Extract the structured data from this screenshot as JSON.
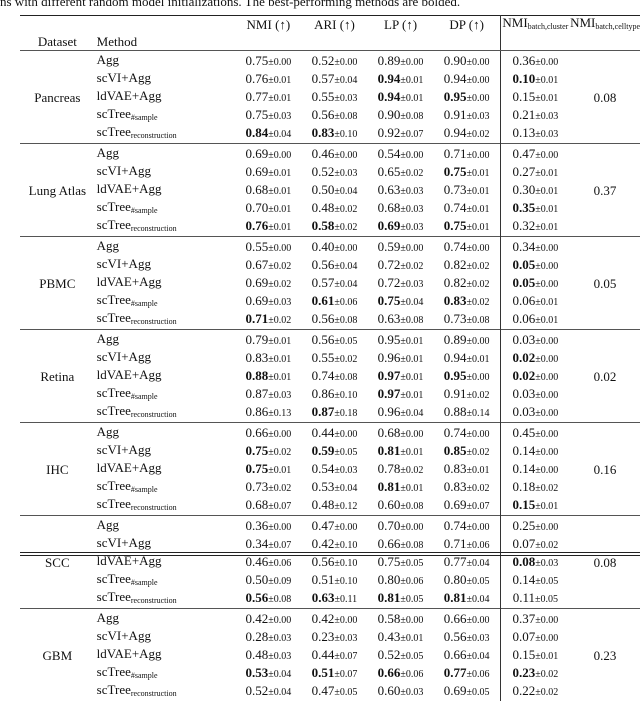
{
  "caption": "ns with different random model initializations. The best-performing methods are bolded.",
  "headers": {
    "dataset": "Dataset",
    "method": "Method",
    "nmi": "NMI (↑)",
    "ari": "ARI (↑)",
    "lp": "LP (↑)",
    "dp": "DP (↑)",
    "nmi_bc_base": "NMI",
    "nmi_bc_sub": "batch,cluster",
    "nmi_bct_base": "NMI",
    "nmi_bct_sub": "batch,celltype"
  },
  "methods": [
    {
      "base": "Agg",
      "sub": ""
    },
    {
      "base": "scVI+Agg",
      "sub": ""
    },
    {
      "base": "ldVAE+Agg",
      "sub": ""
    },
    {
      "base": "scTree",
      "sub": "#sample"
    },
    {
      "base": "scTree",
      "sub": "reconstruction"
    }
  ],
  "datasets": [
    {
      "name": "Pancreas",
      "celltype": "0.08",
      "rows": [
        [
          [
            "0.75",
            "0.00",
            0
          ],
          [
            "0.52",
            "0.00",
            0
          ],
          [
            "0.89",
            "0.00",
            0
          ],
          [
            "0.90",
            "0.00",
            0
          ],
          [
            "0.36",
            "0.00",
            0
          ]
        ],
        [
          [
            "0.76",
            "0.01",
            0
          ],
          [
            "0.57",
            "0.04",
            0
          ],
          [
            "0.94",
            "0.01",
            1
          ],
          [
            "0.94",
            "0.00",
            0
          ],
          [
            "0.10",
            "0.01",
            1
          ]
        ],
        [
          [
            "0.77",
            "0.01",
            0
          ],
          [
            "0.55",
            "0.03",
            0
          ],
          [
            "0.94",
            "0.01",
            1
          ],
          [
            "0.95",
            "0.00",
            1
          ],
          [
            "0.15",
            "0.01",
            0
          ]
        ],
        [
          [
            "0.75",
            "0.03",
            0
          ],
          [
            "0.56",
            "0.08",
            0
          ],
          [
            "0.90",
            "0.08",
            0
          ],
          [
            "0.91",
            "0.03",
            0
          ],
          [
            "0.21",
            "0.03",
            0
          ]
        ],
        [
          [
            "0.84",
            "0.04",
            1
          ],
          [
            "0.83",
            "0.10",
            1
          ],
          [
            "0.92",
            "0.07",
            0
          ],
          [
            "0.94",
            "0.02",
            0
          ],
          [
            "0.13",
            "0.03",
            0
          ]
        ]
      ]
    },
    {
      "name": "Lung Atlas",
      "celltype": "0.37",
      "rows": [
        [
          [
            "0.69",
            "0.00",
            0
          ],
          [
            "0.46",
            "0.00",
            0
          ],
          [
            "0.54",
            "0.00",
            0
          ],
          [
            "0.71",
            "0.00",
            0
          ],
          [
            "0.47",
            "0.00",
            0
          ]
        ],
        [
          [
            "0.69",
            "0.01",
            0
          ],
          [
            "0.52",
            "0.03",
            0
          ],
          [
            "0.65",
            "0.02",
            0
          ],
          [
            "0.75",
            "0.01",
            1
          ],
          [
            "0.27",
            "0.01",
            0
          ]
        ],
        [
          [
            "0.68",
            "0.01",
            0
          ],
          [
            "0.50",
            "0.04",
            0
          ],
          [
            "0.63",
            "0.03",
            0
          ],
          [
            "0.73",
            "0.01",
            0
          ],
          [
            "0.30",
            "0.01",
            0
          ]
        ],
        [
          [
            "0.70",
            "0.01",
            0
          ],
          [
            "0.48",
            "0.02",
            0
          ],
          [
            "0.68",
            "0.03",
            0
          ],
          [
            "0.74",
            "0.01",
            0
          ],
          [
            "0.35",
            "0.01",
            1
          ]
        ],
        [
          [
            "0.76",
            "0.01",
            1
          ],
          [
            "0.58",
            "0.02",
            1
          ],
          [
            "0.69",
            "0.03",
            1
          ],
          [
            "0.75",
            "0.01",
            1
          ],
          [
            "0.32",
            "0.01",
            0
          ]
        ]
      ]
    },
    {
      "name": "PBMC",
      "celltype": "0.05",
      "rows": [
        [
          [
            "0.55",
            "0.00",
            0
          ],
          [
            "0.40",
            "0.00",
            0
          ],
          [
            "0.59",
            "0.00",
            0
          ],
          [
            "0.74",
            "0.00",
            0
          ],
          [
            "0.34",
            "0.00",
            0
          ]
        ],
        [
          [
            "0.67",
            "0.02",
            0
          ],
          [
            "0.56",
            "0.04",
            0
          ],
          [
            "0.72",
            "0.02",
            0
          ],
          [
            "0.82",
            "0.02",
            0
          ],
          [
            "0.05",
            "0.00",
            1
          ]
        ],
        [
          [
            "0.69",
            "0.02",
            0
          ],
          [
            "0.57",
            "0.04",
            0
          ],
          [
            "0.72",
            "0.03",
            0
          ],
          [
            "0.82",
            "0.02",
            0
          ],
          [
            "0.05",
            "0.00",
            1
          ]
        ],
        [
          [
            "0.69",
            "0.03",
            0
          ],
          [
            "0.61",
            "0.06",
            1
          ],
          [
            "0.75",
            "0.04",
            1
          ],
          [
            "0.83",
            "0.02",
            1
          ],
          [
            "0.06",
            "0.01",
            0
          ]
        ],
        [
          [
            "0.71",
            "0.02",
            1
          ],
          [
            "0.56",
            "0.08",
            0
          ],
          [
            "0.63",
            "0.08",
            0
          ],
          [
            "0.73",
            "0.08",
            0
          ],
          [
            "0.06",
            "0.01",
            0
          ]
        ]
      ]
    },
    {
      "name": "Retina",
      "celltype": "0.02",
      "rows": [
        [
          [
            "0.79",
            "0.01",
            0
          ],
          [
            "0.56",
            "0.05",
            0
          ],
          [
            "0.95",
            "0.01",
            0
          ],
          [
            "0.89",
            "0.00",
            0
          ],
          [
            "0.03",
            "0.00",
            0
          ]
        ],
        [
          [
            "0.83",
            "0.01",
            0
          ],
          [
            "0.55",
            "0.02",
            0
          ],
          [
            "0.96",
            "0.01",
            0
          ],
          [
            "0.94",
            "0.01",
            0
          ],
          [
            "0.02",
            "0.00",
            1
          ]
        ],
        [
          [
            "0.88",
            "0.01",
            1
          ],
          [
            "0.74",
            "0.08",
            0
          ],
          [
            "0.97",
            "0.01",
            1
          ],
          [
            "0.95",
            "0.00",
            1
          ],
          [
            "0.02",
            "0.00",
            1
          ]
        ],
        [
          [
            "0.87",
            "0.03",
            0
          ],
          [
            "0.86",
            "0.10",
            0
          ],
          [
            "0.97",
            "0.01",
            1
          ],
          [
            "0.91",
            "0.02",
            0
          ],
          [
            "0.03",
            "0.00",
            0
          ]
        ],
        [
          [
            "0.86",
            "0.13",
            0
          ],
          [
            "0.87",
            "0.18",
            1
          ],
          [
            "0.96",
            "0.04",
            0
          ],
          [
            "0.88",
            "0.14",
            0
          ],
          [
            "0.03",
            "0.00",
            0
          ]
        ]
      ]
    },
    {
      "name": "IHC",
      "celltype": "0.16",
      "rows": [
        [
          [
            "0.66",
            "0.00",
            0
          ],
          [
            "0.44",
            "0.00",
            0
          ],
          [
            "0.68",
            "0.00",
            0
          ],
          [
            "0.74",
            "0.00",
            0
          ],
          [
            "0.45",
            "0.00",
            0
          ]
        ],
        [
          [
            "0.75",
            "0.02",
            1
          ],
          [
            "0.59",
            "0.05",
            1
          ],
          [
            "0.81",
            "0.01",
            1
          ],
          [
            "0.85",
            "0.02",
            1
          ],
          [
            "0.14",
            "0.00",
            0
          ]
        ],
        [
          [
            "0.75",
            "0.01",
            1
          ],
          [
            "0.54",
            "0.03",
            0
          ],
          [
            "0.78",
            "0.02",
            0
          ],
          [
            "0.83",
            "0.01",
            0
          ],
          [
            "0.14",
            "0.00",
            0
          ]
        ],
        [
          [
            "0.73",
            "0.02",
            0
          ],
          [
            "0.53",
            "0.04",
            0
          ],
          [
            "0.81",
            "0.01",
            1
          ],
          [
            "0.83",
            "0.02",
            0
          ],
          [
            "0.18",
            "0.02",
            0
          ]
        ],
        [
          [
            "0.68",
            "0.07",
            0
          ],
          [
            "0.48",
            "0.12",
            0
          ],
          [
            "0.60",
            "0.08",
            0
          ],
          [
            "0.69",
            "0.07",
            0
          ],
          [
            "0.15",
            "0.01",
            1
          ]
        ]
      ]
    },
    {
      "name": "SCC",
      "celltype": "0.08",
      "rows": [
        [
          [
            "0.36",
            "0.00",
            0
          ],
          [
            "0.47",
            "0.00",
            0
          ],
          [
            "0.70",
            "0.00",
            0
          ],
          [
            "0.74",
            "0.00",
            0
          ],
          [
            "0.25",
            "0.00",
            0
          ]
        ],
        [
          [
            "0.34",
            "0.07",
            0
          ],
          [
            "0.42",
            "0.10",
            0
          ],
          [
            "0.66",
            "0.08",
            0
          ],
          [
            "0.71",
            "0.06",
            0
          ],
          [
            "0.07",
            "0.02",
            0
          ]
        ],
        [
          [
            "0.46",
            "0.06",
            0
          ],
          [
            "0.56",
            "0.10",
            0
          ],
          [
            "0.75",
            "0.05",
            0
          ],
          [
            "0.77",
            "0.04",
            0
          ],
          [
            "0.08",
            "0.03",
            1
          ]
        ],
        [
          [
            "0.50",
            "0.09",
            0
          ],
          [
            "0.51",
            "0.10",
            0
          ],
          [
            "0.80",
            "0.06",
            0
          ],
          [
            "0.80",
            "0.05",
            0
          ],
          [
            "0.14",
            "0.05",
            0
          ]
        ],
        [
          [
            "0.56",
            "0.08",
            1
          ],
          [
            "0.63",
            "0.11",
            1
          ],
          [
            "0.81",
            "0.05",
            1
          ],
          [
            "0.81",
            "0.04",
            1
          ],
          [
            "0.11",
            "0.05",
            0
          ]
        ]
      ]
    },
    {
      "name": "GBM",
      "celltype": "0.23",
      "rows": [
        [
          [
            "0.42",
            "0.00",
            0
          ],
          [
            "0.42",
            "0.00",
            0
          ],
          [
            "0.58",
            "0.00",
            0
          ],
          [
            "0.66",
            "0.00",
            0
          ],
          [
            "0.37",
            "0.00",
            0
          ]
        ],
        [
          [
            "0.28",
            "0.03",
            0
          ],
          [
            "0.23",
            "0.03",
            0
          ],
          [
            "0.43",
            "0.01",
            0
          ],
          [
            "0.56",
            "0.03",
            0
          ],
          [
            "0.07",
            "0.00",
            0
          ]
        ],
        [
          [
            "0.48",
            "0.03",
            0
          ],
          [
            "0.44",
            "0.07",
            0
          ],
          [
            "0.52",
            "0.05",
            0
          ],
          [
            "0.66",
            "0.04",
            0
          ],
          [
            "0.15",
            "0.01",
            0
          ]
        ],
        [
          [
            "0.53",
            "0.04",
            1
          ],
          [
            "0.51",
            "0.07",
            1
          ],
          [
            "0.66",
            "0.06",
            1
          ],
          [
            "0.77",
            "0.06",
            1
          ],
          [
            "0.23",
            "0.02",
            1
          ]
        ],
        [
          [
            "0.52",
            "0.04",
            0
          ],
          [
            "0.47",
            "0.05",
            0
          ],
          [
            "0.60",
            "0.03",
            0
          ],
          [
            "0.69",
            "0.05",
            0
          ],
          [
            "0.22",
            "0.02",
            0
          ]
        ]
      ]
    }
  ]
}
